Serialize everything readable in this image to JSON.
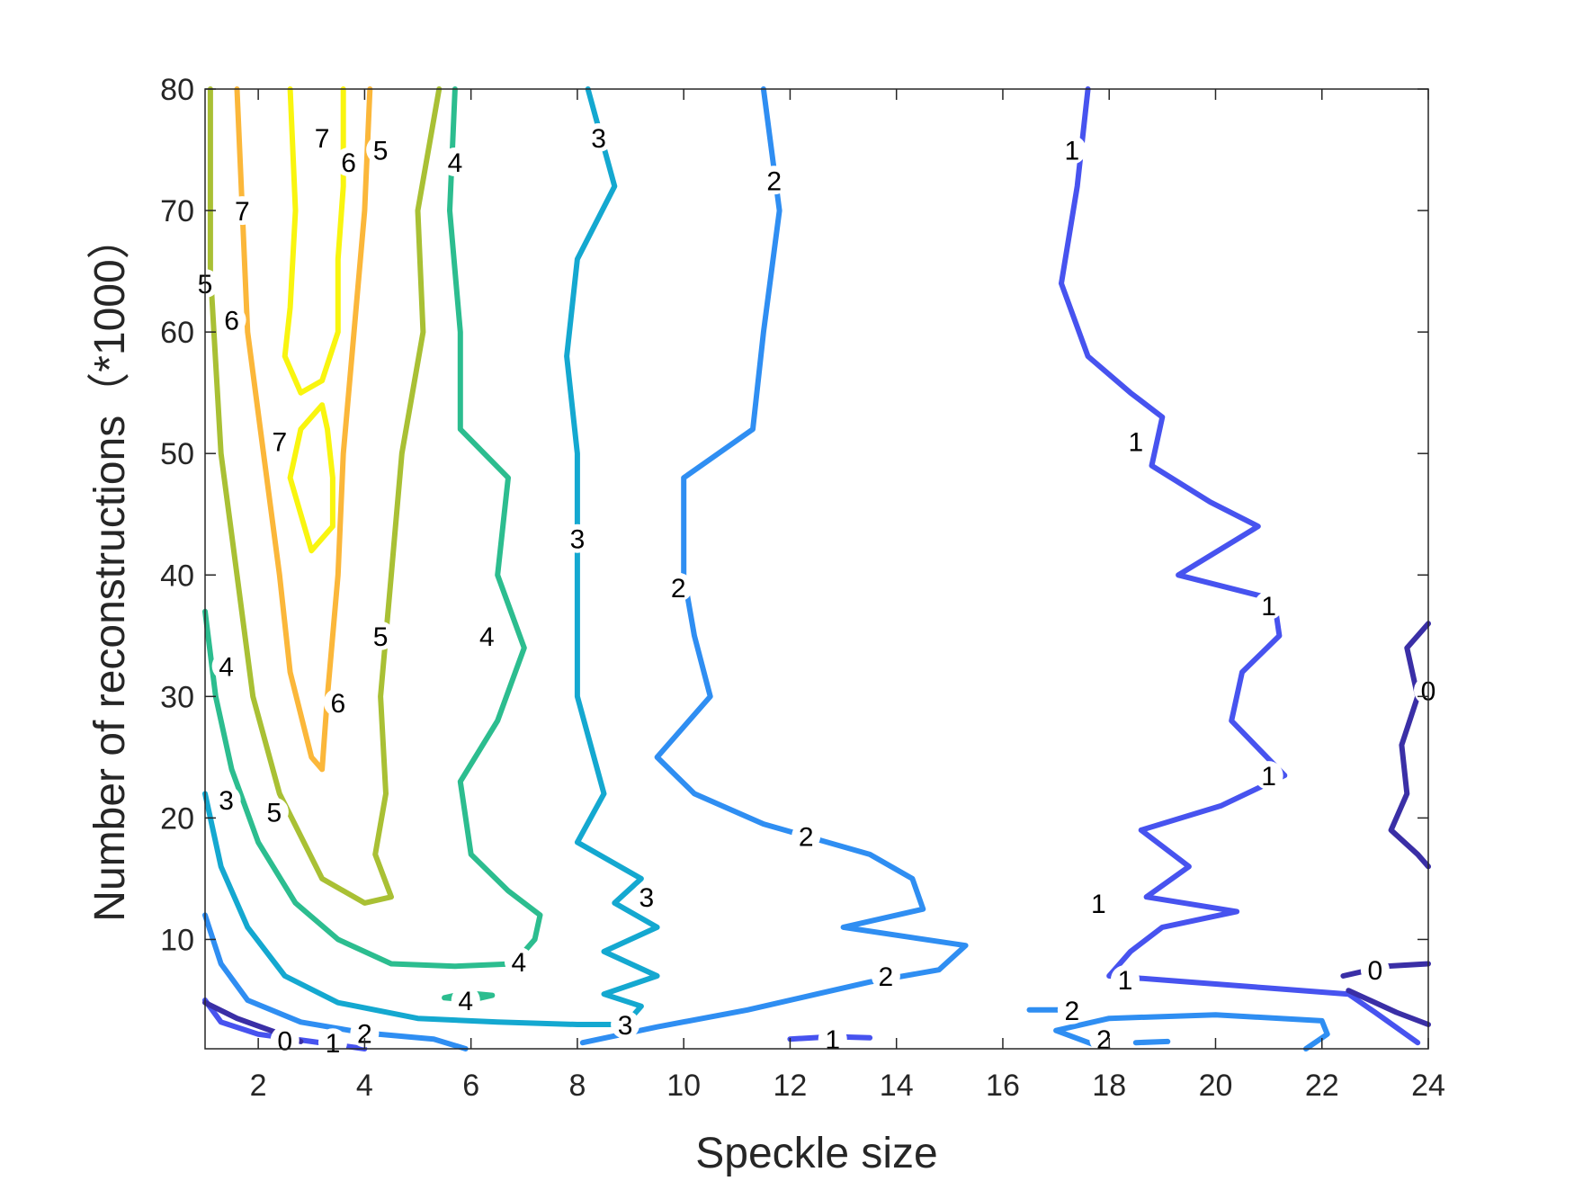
{
  "chart_data": {
    "type": "contour",
    "title": "",
    "xlabel": "Speckle size",
    "ylabel": "Number of reconstructions（*1000）",
    "xlim": [
      1,
      24
    ],
    "ylim": [
      1,
      80
    ],
    "xticks": [
      2,
      4,
      6,
      8,
      10,
      12,
      14,
      16,
      18,
      20,
      22,
      24
    ],
    "yticks": [
      10,
      20,
      30,
      40,
      50,
      60,
      70,
      80
    ],
    "grid": false,
    "box": true,
    "levels": [
      {
        "level": 7,
        "label": "7",
        "color": "#f9f50f"
      },
      {
        "level": 6,
        "label": "6",
        "color": "#fbb73a"
      },
      {
        "level": 5,
        "label": "5",
        "color": "#a9c034"
      },
      {
        "level": 4,
        "label": "4",
        "color": "#2cbd8f"
      },
      {
        "level": 3,
        "label": "3",
        "color": "#14a8d0"
      },
      {
        "level": 2,
        "label": "2",
        "color": "#2f8ef2"
      },
      {
        "level": 1,
        "label": "1",
        "color": "#4753ef"
      },
      {
        "level": 0,
        "label": "0",
        "color": "#3a2fa6"
      }
    ],
    "contours": [
      {
        "level": 7,
        "points": [
          [
            2.6,
            80
          ],
          [
            2.7,
            70
          ],
          [
            2.6,
            62
          ],
          [
            2.5,
            58
          ],
          [
            2.8,
            55
          ],
          [
            3.2,
            56
          ],
          [
            3.5,
            60
          ],
          [
            3.5,
            66
          ],
          [
            3.6,
            72
          ],
          [
            3.6,
            80
          ]
        ]
      },
      {
        "level": 7,
        "points": [
          [
            3.2,
            54
          ],
          [
            2.8,
            52
          ],
          [
            2.6,
            48
          ],
          [
            2.8,
            45
          ],
          [
            3.0,
            42
          ],
          [
            3.4,
            44
          ],
          [
            3.4,
            48
          ],
          [
            3.3,
            52
          ],
          [
            3.2,
            54
          ]
        ]
      },
      {
        "level": 6,
        "points": [
          [
            1.6,
            80
          ],
          [
            1.7,
            70
          ],
          [
            1.8,
            60
          ],
          [
            2.1,
            50
          ],
          [
            2.4,
            40
          ],
          [
            2.6,
            32
          ],
          [
            3.0,
            25
          ],
          [
            3.2,
            24
          ],
          [
            3.3,
            30
          ],
          [
            3.5,
            40
          ],
          [
            3.6,
            50
          ],
          [
            3.8,
            60
          ],
          [
            4.0,
            70
          ],
          [
            4.1,
            80
          ]
        ]
      },
      {
        "level": 5,
        "points": [
          [
            1.1,
            80
          ],
          [
            1.1,
            65
          ],
          [
            1.3,
            50
          ],
          [
            1.6,
            40
          ],
          [
            1.9,
            30
          ],
          [
            2.4,
            22
          ],
          [
            3.2,
            15
          ],
          [
            4.0,
            13
          ],
          [
            4.5,
            13.5
          ],
          [
            4.2,
            17
          ],
          [
            4.4,
            22
          ],
          [
            4.3,
            30
          ],
          [
            4.5,
            40
          ],
          [
            4.7,
            50
          ],
          [
            5.1,
            60
          ],
          [
            5.0,
            70
          ],
          [
            5.4,
            80
          ]
        ]
      },
      {
        "level": 4,
        "points": [
          [
            1.0,
            37
          ],
          [
            1.2,
            30
          ],
          [
            1.5,
            24
          ],
          [
            2.0,
            18
          ],
          [
            2.7,
            13
          ],
          [
            3.5,
            10
          ],
          [
            4.5,
            8
          ],
          [
            5.7,
            7.8
          ],
          [
            6.8,
            8
          ],
          [
            7.2,
            10
          ],
          [
            7.3,
            12
          ],
          [
            6.7,
            14
          ],
          [
            6.0,
            17
          ],
          [
            5.8,
            23
          ],
          [
            6.5,
            28
          ],
          [
            7.0,
            34
          ],
          [
            6.5,
            40
          ],
          [
            6.7,
            48
          ],
          [
            5.8,
            52
          ],
          [
            5.8,
            60
          ],
          [
            5.6,
            70
          ],
          [
            5.7,
            80
          ]
        ]
      },
      {
        "level": 4,
        "points": [
          [
            5.5,
            5.2
          ],
          [
            6.0,
            5.0
          ],
          [
            6.4,
            5.4
          ],
          [
            5.9,
            5.6
          ],
          [
            5.5,
            5.2
          ]
        ]
      },
      {
        "level": 3,
        "points": [
          [
            1.0,
            22
          ],
          [
            1.3,
            16
          ],
          [
            1.8,
            11
          ],
          [
            2.5,
            7
          ],
          [
            3.5,
            4.8
          ],
          [
            5.0,
            3.5
          ],
          [
            6.5,
            3.2
          ],
          [
            8.0,
            3.0
          ],
          [
            8.9,
            3.0
          ],
          [
            9.2,
            4.5
          ],
          [
            8.5,
            5.5
          ],
          [
            9.5,
            7
          ],
          [
            8.5,
            9
          ],
          [
            9.5,
            11
          ],
          [
            8.7,
            13
          ],
          [
            9.2,
            15
          ],
          [
            8.0,
            18
          ],
          [
            8.5,
            22
          ],
          [
            8.0,
            30
          ],
          [
            8.0,
            40
          ],
          [
            8.0,
            50
          ],
          [
            7.8,
            58
          ],
          [
            8.0,
            66
          ],
          [
            8.7,
            72
          ],
          [
            8.2,
            80
          ]
        ]
      },
      {
        "level": 2,
        "points": [
          [
            1.0,
            12
          ],
          [
            1.3,
            8
          ],
          [
            1.8,
            5
          ],
          [
            2.8,
            3.2
          ],
          [
            4.0,
            2.3
          ],
          [
            5.3,
            1.8
          ],
          [
            5.9,
            1.0
          ]
        ]
      },
      {
        "level": 2,
        "points": [
          [
            8.1,
            1.5
          ],
          [
            9.5,
            2.8
          ],
          [
            11.2,
            4.2
          ],
          [
            12.5,
            5.5
          ],
          [
            13.5,
            6.5
          ],
          [
            14.8,
            7.5
          ],
          [
            15.3,
            9.5
          ],
          [
            13.0,
            11
          ],
          [
            14.5,
            12.5
          ],
          [
            14.3,
            15
          ],
          [
            13.5,
            17
          ],
          [
            11.5,
            19.5
          ],
          [
            10.2,
            22
          ],
          [
            9.5,
            25
          ],
          [
            10.5,
            30
          ],
          [
            10.2,
            35
          ],
          [
            10.0,
            40
          ],
          [
            10.0,
            48
          ],
          [
            11.3,
            52
          ],
          [
            11.5,
            60
          ],
          [
            11.8,
            70
          ],
          [
            11.5,
            80
          ]
        ]
      },
      {
        "level": 2,
        "points": [
          [
            16.5,
            4.2
          ],
          [
            17.5,
            4.2
          ]
        ]
      },
      {
        "level": 2,
        "points": [
          [
            17.8,
            1.2
          ],
          [
            17.0,
            2.5
          ],
          [
            18.0,
            3.5
          ],
          [
            20.0,
            3.8
          ],
          [
            22.0,
            3.3
          ],
          [
            22.1,
            2.2
          ],
          [
            21.7,
            1.0
          ]
        ]
      },
      {
        "level": 2,
        "points": [
          [
            18.5,
            1.5
          ],
          [
            19.1,
            1.6
          ]
        ]
      },
      {
        "level": 1,
        "points": [
          [
            1.0,
            5
          ],
          [
            1.3,
            3.2
          ],
          [
            2.0,
            2.2
          ],
          [
            3.0,
            1.6
          ],
          [
            4.0,
            1.0
          ]
        ]
      },
      {
        "level": 1,
        "points": [
          [
            12.0,
            1.8
          ],
          [
            12.8,
            2.0
          ],
          [
            13.5,
            1.9
          ]
        ]
      },
      {
        "level": 1,
        "points": [
          [
            17.6,
            80
          ],
          [
            17.4,
            72
          ],
          [
            17.1,
            64
          ],
          [
            17.6,
            58
          ],
          [
            18.4,
            55
          ],
          [
            19.0,
            53
          ],
          [
            18.8,
            49
          ],
          [
            19.9,
            46
          ],
          [
            20.8,
            44
          ],
          [
            19.3,
            40
          ],
          [
            21.1,
            38
          ],
          [
            21.2,
            35
          ],
          [
            20.5,
            32
          ],
          [
            20.3,
            28
          ],
          [
            21.3,
            23.5
          ],
          [
            20.1,
            21
          ],
          [
            18.6,
            19
          ],
          [
            19.5,
            16
          ],
          [
            18.7,
            13.5
          ],
          [
            20.4,
            12.3
          ],
          [
            19.0,
            11
          ],
          [
            18.4,
            9
          ],
          [
            18.0,
            7
          ],
          [
            19.5,
            6.5
          ],
          [
            21.0,
            6.0
          ],
          [
            22.5,
            5.5
          ],
          [
            23.0,
            4.0
          ],
          [
            23.8,
            1.5
          ]
        ]
      },
      {
        "level": 0,
        "points": [
          [
            1.0,
            4.8
          ],
          [
            1.6,
            3.5
          ],
          [
            2.3,
            2.4
          ],
          [
            2.8,
            1.6
          ]
        ]
      },
      {
        "level": 0,
        "points": [
          [
            24.0,
            36
          ],
          [
            23.6,
            34
          ],
          [
            23.8,
            30
          ],
          [
            23.5,
            26
          ],
          [
            23.6,
            22
          ],
          [
            23.3,
            19
          ],
          [
            23.8,
            17
          ],
          [
            24.0,
            16
          ]
        ]
      },
      {
        "level": 0,
        "points": [
          [
            22.4,
            7.0
          ],
          [
            23.2,
            7.8
          ],
          [
            24.0,
            8.0
          ]
        ]
      },
      {
        "level": 0,
        "points": [
          [
            22.5,
            5.8
          ],
          [
            23.4,
            4.0
          ],
          [
            24.0,
            3.0
          ]
        ]
      }
    ],
    "contour_labels": [
      {
        "text": "7",
        "x": 3.2,
        "y": 76,
        "level": 7
      },
      {
        "text": "7",
        "x": 1.7,
        "y": 70,
        "level": 7
      },
      {
        "text": "7",
        "x": 2.4,
        "y": 51,
        "level": 7
      },
      {
        "text": "6",
        "x": 3.7,
        "y": 74,
        "level": 6
      },
      {
        "text": "6",
        "x": 1.5,
        "y": 61,
        "level": 6
      },
      {
        "text": "6",
        "x": 3.5,
        "y": 29.5,
        "level": 6
      },
      {
        "text": "5",
        "x": 4.3,
        "y": 75,
        "level": 5
      },
      {
        "text": "5",
        "x": 1.0,
        "y": 64,
        "level": 5
      },
      {
        "text": "5",
        "x": 4.3,
        "y": 35,
        "level": 5
      },
      {
        "text": "5",
        "x": 2.3,
        "y": 20.5,
        "level": 5
      },
      {
        "text": "4",
        "x": 5.7,
        "y": 74,
        "level": 4
      },
      {
        "text": "4",
        "x": 1.4,
        "y": 32.5,
        "level": 4
      },
      {
        "text": "4",
        "x": 6.3,
        "y": 35,
        "level": 4
      },
      {
        "text": "4",
        "x": 6.9,
        "y": 8.2,
        "level": 4
      },
      {
        "text": "4",
        "x": 5.9,
        "y": 5.0,
        "level": 4
      },
      {
        "text": "3",
        "x": 8.4,
        "y": 76,
        "level": 3
      },
      {
        "text": "3",
        "x": 8.0,
        "y": 43,
        "level": 3
      },
      {
        "text": "3",
        "x": 1.4,
        "y": 21.5,
        "level": 3
      },
      {
        "text": "3",
        "x": 9.3,
        "y": 13.5,
        "level": 3
      },
      {
        "text": "3",
        "x": 8.9,
        "y": 3.0,
        "level": 3
      },
      {
        "text": "2",
        "x": 11.7,
        "y": 72.5,
        "level": 2
      },
      {
        "text": "2",
        "x": 9.9,
        "y": 39,
        "level": 2
      },
      {
        "text": "2",
        "x": 12.3,
        "y": 18.5,
        "level": 2
      },
      {
        "text": "2",
        "x": 13.8,
        "y": 7.0,
        "level": 2
      },
      {
        "text": "2",
        "x": 4.0,
        "y": 2.3,
        "level": 2
      },
      {
        "text": "2",
        "x": 17.3,
        "y": 4.2,
        "level": 2
      },
      {
        "text": "2",
        "x": 17.9,
        "y": 1.8,
        "level": 2
      },
      {
        "text": "1",
        "x": 17.3,
        "y": 75,
        "level": 1
      },
      {
        "text": "1",
        "x": 18.5,
        "y": 51,
        "level": 1
      },
      {
        "text": "1",
        "x": 21.0,
        "y": 37.5,
        "level": 1
      },
      {
        "text": "1",
        "x": 21.0,
        "y": 23.5,
        "level": 1
      },
      {
        "text": "1",
        "x": 17.8,
        "y": 13,
        "level": 1
      },
      {
        "text": "1",
        "x": 18.3,
        "y": 6.7,
        "level": 1
      },
      {
        "text": "1",
        "x": 3.4,
        "y": 1.5,
        "level": 1
      },
      {
        "text": "1",
        "x": 12.8,
        "y": 1.8,
        "level": 1
      },
      {
        "text": "0",
        "x": 24.0,
        "y": 30.5,
        "level": 0
      },
      {
        "text": "0",
        "x": 23.0,
        "y": 7.5,
        "level": 0
      },
      {
        "text": "0",
        "x": 2.5,
        "y": 1.7,
        "level": 0
      }
    ]
  }
}
